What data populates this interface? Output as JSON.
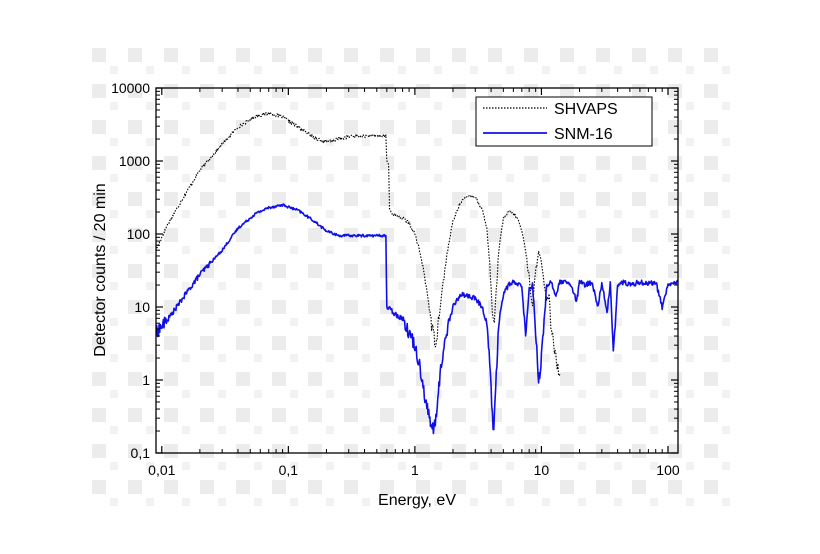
{
  "chart_data": {
    "type": "line",
    "title": "",
    "xlabel": "Energy, eV",
    "ylabel": "Detector counts / 20 min",
    "xscale": "log",
    "yscale": "log",
    "xlim": [
      0.009,
      120
    ],
    "ylim": [
      0.1,
      10000
    ],
    "x_ticks": [
      {
        "value": 0.01,
        "label": "0,01"
      },
      {
        "value": 0.1,
        "label": "0,1"
      },
      {
        "value": 1,
        "label": "1"
      },
      {
        "value": 10,
        "label": "10"
      },
      {
        "value": 100,
        "label": "100"
      }
    ],
    "y_ticks": [
      {
        "value": 0.1,
        "label": "0,1"
      },
      {
        "value": 1,
        "label": "1"
      },
      {
        "value": 10,
        "label": "10"
      },
      {
        "value": 100,
        "label": "100"
      },
      {
        "value": 1000,
        "label": "1000"
      },
      {
        "value": 10000,
        "label": "10000"
      }
    ],
    "legend_position": "top-right",
    "grid": false,
    "series": [
      {
        "name": "SHVAPS",
        "color": "#000000",
        "style": "dotted",
        "x": [
          0.009,
          0.011,
          0.015,
          0.02,
          0.03,
          0.04,
          0.055,
          0.07,
          0.09,
          0.12,
          0.16,
          0.2,
          0.25,
          0.3,
          0.4,
          0.5,
          0.59,
          0.6,
          0.62,
          0.63,
          0.65,
          0.7,
          0.8,
          0.9,
          1.0,
          1.1,
          1.2,
          1.3,
          1.4,
          1.45,
          1.5,
          1.6,
          1.8,
          2.0,
          2.3,
          2.7,
          3.0,
          3.4,
          3.7,
          3.9,
          4.1,
          4.2,
          4.35,
          4.6,
          5.0,
          5.5,
          6.0,
          6.5,
          7.0,
          7.5,
          8.0,
          8.5,
          9.0,
          9.5,
          10.0,
          10.5,
          11.0,
          11.5,
          12.0,
          12.5,
          13.0,
          13.5,
          14.0
        ],
        "y": [
          60,
          130,
          330,
          750,
          1700,
          2900,
          4100,
          4500,
          4000,
          2900,
          2100,
          1800,
          2000,
          2150,
          2200,
          2200,
          2200,
          1000,
          900,
          220,
          200,
          180,
          165,
          140,
          100,
          55,
          25,
          10,
          4,
          3.5,
          4.5,
          12,
          55,
          150,
          280,
          340,
          320,
          220,
          120,
          40,
          9,
          5,
          12,
          60,
          160,
          200,
          190,
          160,
          110,
          60,
          25,
          10,
          30,
          60,
          40,
          20,
          12,
          15,
          4,
          3,
          2.5,
          1.5,
          1.2
        ]
      },
      {
        "name": "SNM-16",
        "color": "#1010e6",
        "style": "solid",
        "x": [
          0.009,
          0.011,
          0.015,
          0.02,
          0.03,
          0.04,
          0.055,
          0.07,
          0.09,
          0.12,
          0.16,
          0.2,
          0.25,
          0.3,
          0.4,
          0.5,
          0.59,
          0.6,
          0.65,
          0.7,
          0.8,
          0.9,
          1.0,
          1.1,
          1.2,
          1.3,
          1.4,
          1.5,
          1.6,
          1.8,
          2.0,
          2.3,
          2.7,
          3.0,
          3.4,
          3.7,
          3.9,
          4.1,
          4.2,
          4.35,
          4.6,
          5.0,
          5.5,
          6.0,
          6.5,
          7.0,
          7.5,
          8.0,
          8.5,
          9.0,
          9.5,
          10.0,
          10.5,
          11.0,
          12.0,
          13.0,
          14.0,
          15.0,
          17.0,
          19.0,
          20.0,
          22.0,
          25.0,
          28.0,
          30.0,
          33.0,
          35.0,
          37.0,
          40.0,
          45.0,
          50.0,
          60.0,
          70.0,
          80.0,
          90.0,
          100.0,
          120.0
        ],
        "y": [
          4.5,
          6.5,
          14,
          28,
          60,
          120,
          190,
          230,
          250,
          210,
          150,
          110,
          95,
          95,
          95,
          95,
          95,
          10,
          9,
          8,
          7,
          4.5,
          3,
          1.5,
          0.6,
          0.3,
          0.2,
          0.4,
          1.5,
          5,
          10,
          15,
          14,
          13,
          10,
          6,
          2,
          0.3,
          0.2,
          0.8,
          6,
          15,
          20,
          22,
          20,
          20,
          4,
          18,
          20,
          5,
          0.9,
          2,
          6,
          20,
          22,
          14,
          22,
          22,
          20,
          12,
          22,
          20,
          22,
          10,
          22,
          8,
          22,
          2.5,
          20,
          22,
          20,
          22,
          21,
          22,
          10,
          20,
          22
        ]
      }
    ]
  }
}
